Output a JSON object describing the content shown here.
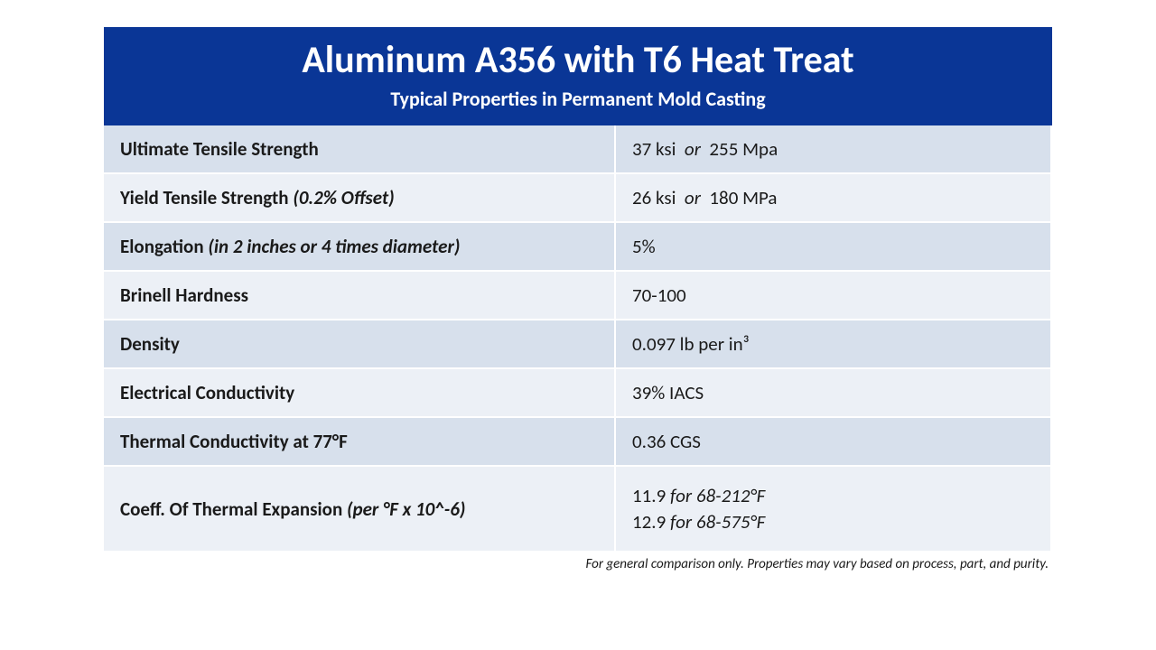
{
  "header": {
    "title": "Aluminum A356 with T6 Heat Treat",
    "subtitle": "Typical Properties in Permanent Mold Casting"
  },
  "rows": [
    {
      "label": "Ultimate Tensile Strength",
      "qualifier": "",
      "value_a": "37 ksi",
      "or": "or",
      "value_b": "255 Mpa"
    },
    {
      "label": "Yield Tensile Strength",
      "qualifier": "(0.2% Offset)",
      "value_a": "26 ksi",
      "or": "or",
      "value_b": "180 MPa"
    },
    {
      "label": "Elongation",
      "qualifier": "(in 2 inches or 4 times diameter)",
      "value_a": "5%",
      "or": "",
      "value_b": ""
    },
    {
      "label": "Brinell Hardness",
      "qualifier": "",
      "value_a": "70-100",
      "or": "",
      "value_b": ""
    },
    {
      "label": "Density",
      "qualifier": "",
      "value_a": "0.097 lb per in³",
      "or": "",
      "value_b": ""
    },
    {
      "label": "Electrical Conductivity",
      "qualifier": "",
      "value_a": "39% IACS",
      "or": "",
      "value_b": ""
    },
    {
      "label": "Thermal Conductivity at 77°F",
      "qualifier": "",
      "value_a": "0.36 CGS",
      "or": "",
      "value_b": ""
    }
  ],
  "cte": {
    "label": "Coeff. Of Thermal Expansion",
    "qualifier": "(per °F x 10^-6)",
    "line1_val": "11.9",
    "line1_for": "for 68-212°F",
    "line2_val": "12.9",
    "line2_for": "for 68-575°F"
  },
  "footnote": "For general comparison only. Properties may vary based on process, part, and purity.",
  "colors": {
    "header_bg": "#0a3696",
    "row_odd": "#d7e0ec",
    "row_even": "#ecf0f6",
    "text": "#1a1a1a",
    "bg": "#ffffff"
  }
}
